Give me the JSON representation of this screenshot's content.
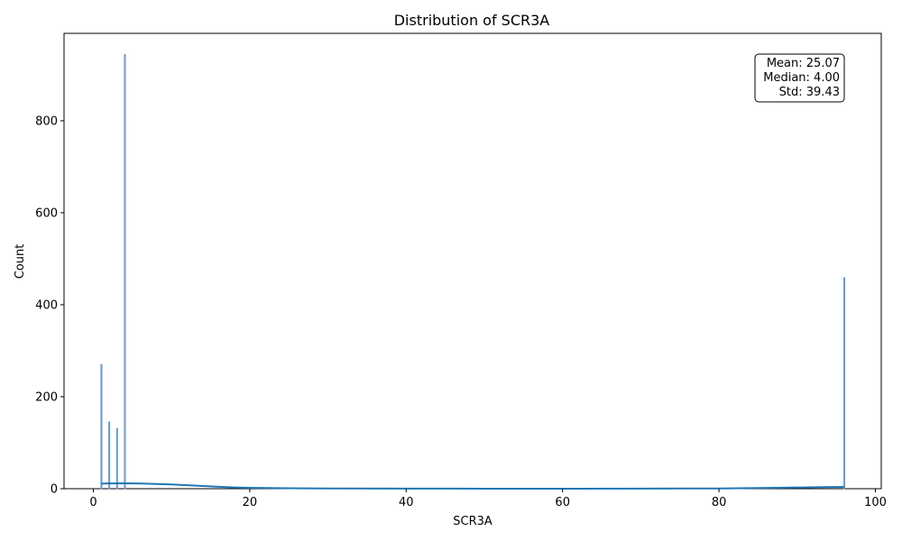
{
  "chart_data": {
    "type": "bar",
    "title": "Distribution of SCR3A",
    "xlabel": "SCR3A",
    "ylabel": "Count",
    "xlim": [
      -3.75,
      100.75
    ],
    "ylim": [
      0,
      990
    ],
    "x_ticks": [
      0,
      20,
      40,
      60,
      80,
      100
    ],
    "y_ticks": [
      0,
      200,
      400,
      600,
      800
    ],
    "colors": {
      "bar_fill": "#9ebbd8",
      "bar_edge": "#5f8fbf",
      "kde_line": "#1f77b4"
    },
    "bars": [
      {
        "x": 1,
        "count": 270
      },
      {
        "x": 2,
        "count": 145
      },
      {
        "x": 3,
        "count": 131
      },
      {
        "x": 4,
        "count": 944
      },
      {
        "x": 96,
        "count": 459
      }
    ],
    "kde": {
      "x": [
        1,
        2,
        4,
        6,
        8,
        10,
        12,
        14,
        16,
        18,
        20,
        25,
        30,
        40,
        50,
        60,
        70,
        80,
        85,
        90,
        93,
        96
      ],
      "y": [
        11,
        11.5,
        11.8,
        11.3,
        10.4,
        9.2,
        7.6,
        5.8,
        4.2,
        2.8,
        1.9,
        0.9,
        0.5,
        0.2,
        0.1,
        0.1,
        0.2,
        0.6,
        1.4,
        2.6,
        3.4,
        3.9
      ]
    },
    "stats_box": {
      "lines": [
        "Mean: 25.07",
        "Median: 4.00",
        "Std: 39.43"
      ],
      "placement": "top-right"
    }
  }
}
